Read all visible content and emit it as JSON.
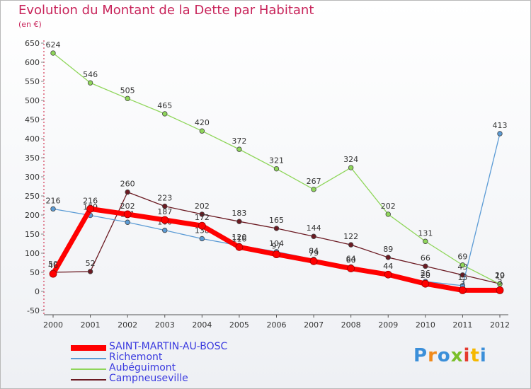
{
  "header": {
    "title": "Evolution du Montant de la Dette par Habitant",
    "subtitle": "(en €)"
  },
  "logo": {
    "text": "Proxiti",
    "colors": [
      "#3b8fd9",
      "#f08a1c",
      "#3b8fd9",
      "#7abf2a",
      "#e53a2e",
      "#f5b800",
      "#3b8fd9"
    ]
  },
  "chart_data": {
    "type": "line",
    "title": "Evolution du Montant de la Dette par Habitant",
    "ylabel": "(en €)",
    "xlabel": "",
    "x": [
      "2000",
      "2001",
      "2002",
      "2003",
      "2004",
      "2005",
      "2006",
      "2007",
      "2008",
      "2009",
      "2010",
      "2011",
      "2012"
    ],
    "ylim": [
      -50,
      650
    ],
    "yticks": [
      -50,
      0,
      50,
      100,
      150,
      200,
      250,
      300,
      350,
      400,
      450,
      500,
      550,
      600,
      650
    ],
    "grid": false,
    "legend_position": "bottom-left",
    "series": [
      {
        "name": "Campneuseville",
        "color": "#6b1a22",
        "values": [
          50,
          52,
          260,
          223,
          202,
          183,
          165,
          144,
          122,
          89,
          66,
          43,
          20
        ]
      },
      {
        "name": "Aubéguimont",
        "color": "#8fd65a",
        "values": [
          624,
          546,
          505,
          465,
          420,
          372,
          321,
          267,
          324,
          202,
          131,
          69,
          19
        ]
      },
      {
        "name": "Richemont",
        "color": "#5b9bd5",
        "values": [
          216,
          199,
          181,
          160,
          138,
          120,
          104,
          84,
          64,
          44,
          26,
          15,
          413
        ]
      },
      {
        "name": "SAINT-MARTIN-AU-BOSC",
        "color": "#ff0000",
        "values": [
          46,
          216,
          202,
          187,
          172,
          116,
          97,
          79,
          60,
          44,
          20,
          3,
          3
        ]
      }
    ]
  }
}
